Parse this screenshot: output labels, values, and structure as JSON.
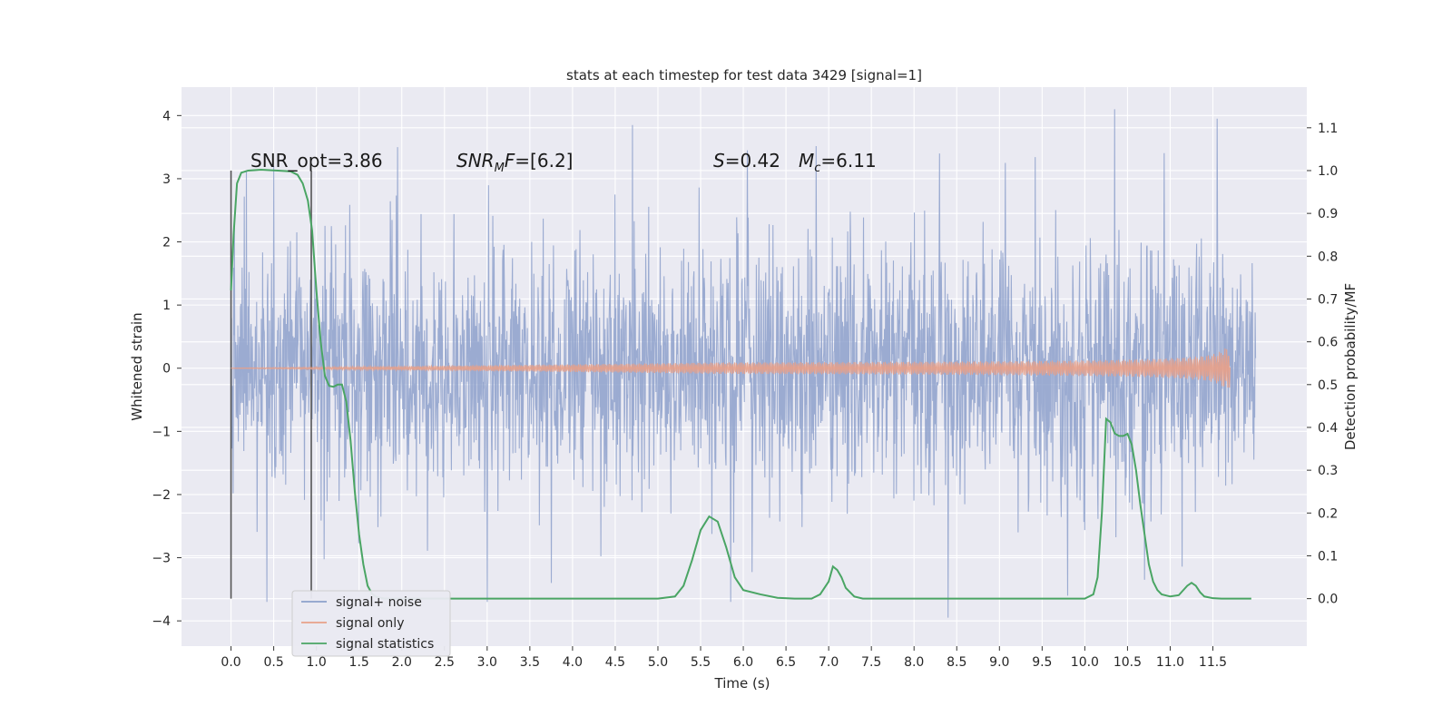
{
  "chart_data": {
    "type": "line",
    "title": "stats at each timestep for test data 3429 [signal=1]",
    "xlabel": "Time (s)",
    "ylabel": "Whitened strain",
    "y2label": "Detection probability/MF",
    "xlim": [
      -0.58,
      12.6
    ],
    "ylim": [
      -4.4,
      4.45
    ],
    "y2lim": [
      -0.111,
      1.195
    ],
    "x_ticks": [
      0.0,
      0.5,
      1.0,
      1.5,
      2.0,
      2.5,
      3.0,
      3.5,
      4.0,
      4.5,
      5.0,
      5.5,
      6.0,
      6.5,
      7.0,
      7.5,
      8.0,
      8.5,
      9.0,
      9.5,
      10.0,
      10.5,
      11.0,
      11.5
    ],
    "x_tick_labels": [
      "0.0",
      "0.5",
      "1.0",
      "1.5",
      "2.0",
      "2.5",
      "3.0",
      "3.5",
      "4.0",
      "4.5",
      "5.0",
      "5.5",
      "6.0",
      "6.5",
      "7.0",
      "7.5",
      "8.0",
      "8.5",
      "9.0",
      "9.5",
      "10.0",
      "10.5",
      "11.0",
      "11.5"
    ],
    "y_ticks": [
      -4,
      -3,
      -2,
      -1,
      0,
      1,
      2,
      3,
      4
    ],
    "y_tick_labels": [
      "−4",
      "−3",
      "−2",
      "−1",
      "0",
      "1",
      "2",
      "3",
      "4"
    ],
    "y2_ticks": [
      0.0,
      0.1,
      0.2,
      0.3,
      0.4,
      0.5,
      0.6,
      0.7,
      0.8,
      0.9,
      1.0,
      1.1
    ],
    "y2_tick_labels": [
      "0.0",
      "0.1",
      "0.2",
      "0.3",
      "0.4",
      "0.5",
      "0.6",
      "0.7",
      "0.8",
      "0.9",
      "1.0",
      "1.1"
    ],
    "grid": true,
    "legend_position": "bottom-left",
    "annotations": {
      "snr_opt": "SNR_opt=3.86",
      "snr_mf_main": "SNR",
      "snr_mf_sub": "M",
      "snr_mf_rest": "F=[6.2]",
      "s_main": "S",
      "s_rest": "=0.42",
      "mc_main": "M",
      "mc_sub": "c",
      "mc_rest": "=6.11"
    },
    "vertical_lines": [
      0.0,
      0.94
    ],
    "series": [
      {
        "name": "signal+ noise",
        "kind": "noise",
        "axis": "left",
        "color": "#8da0cb",
        "x_range": [
          0.0,
          12.0
        ],
        "sigma": 1.0,
        "upper_peaks": [
          [
            0.5,
            3.2
          ],
          [
            1.95,
            3.5
          ],
          [
            4.7,
            3.85
          ],
          [
            6.05,
            3.45
          ],
          [
            8.3,
            3.4
          ],
          [
            10.35,
            4.1
          ],
          [
            11.55,
            3.95
          ]
        ],
        "lower_peaks": [
          [
            0.42,
            -3.7
          ],
          [
            3.0,
            -3.7
          ],
          [
            3.75,
            -3.4
          ],
          [
            5.85,
            -3.7
          ],
          [
            8.4,
            -3.95
          ],
          [
            9.8,
            -3.6
          ],
          [
            10.7,
            -3.35
          ]
        ]
      },
      {
        "name": "signal only",
        "kind": "chirp",
        "axis": "left",
        "color": "#e8a088",
        "x_range": [
          0.0,
          11.7
        ],
        "peak_time": 11.65,
        "peak_amplitude": 0.38
      },
      {
        "name": "signal statistics",
        "kind": "line",
        "axis": "right",
        "color": "#4aa564",
        "x": [
          0.0,
          0.03,
          0.07,
          0.12,
          0.2,
          0.35,
          0.55,
          0.7,
          0.78,
          0.84,
          0.9,
          0.95,
          1.0,
          1.05,
          1.1,
          1.15,
          1.2,
          1.25,
          1.3,
          1.35,
          1.4,
          1.45,
          1.5,
          1.55,
          1.6,
          1.65,
          1.7,
          1.8,
          2.0,
          3.0,
          4.0,
          5.0,
          5.2,
          5.3,
          5.4,
          5.5,
          5.6,
          5.7,
          5.8,
          5.9,
          6.0,
          6.2,
          6.4,
          6.6,
          6.8,
          6.9,
          7.0,
          7.05,
          7.1,
          7.15,
          7.2,
          7.3,
          7.4,
          7.6,
          8.0,
          9.0,
          9.5,
          9.8,
          10.0,
          10.1,
          10.15,
          10.2,
          10.25,
          10.3,
          10.35,
          10.4,
          10.45,
          10.5,
          10.55,
          10.6,
          10.65,
          10.7,
          10.75,
          10.8,
          10.85,
          10.9,
          11.0,
          11.1,
          11.2,
          11.25,
          11.3,
          11.35,
          11.4,
          11.5,
          11.6,
          11.7,
          11.8,
          11.95
        ],
        "y": [
          0.72,
          0.85,
          0.97,
          0.995,
          1.0,
          1.002,
          1.0,
          0.998,
          0.99,
          0.97,
          0.93,
          0.86,
          0.72,
          0.6,
          0.52,
          0.497,
          0.495,
          0.5,
          0.5,
          0.46,
          0.37,
          0.25,
          0.15,
          0.08,
          0.03,
          0.012,
          0.004,
          0.0,
          0.0,
          0.0,
          0.0,
          0.0,
          0.005,
          0.03,
          0.09,
          0.16,
          0.192,
          0.18,
          0.12,
          0.05,
          0.02,
          0.01,
          0.002,
          0.0,
          0.0,
          0.01,
          0.04,
          0.075,
          0.067,
          0.05,
          0.025,
          0.005,
          0.0,
          0.0,
          0.0,
          0.0,
          0.0,
          0.0,
          0.0,
          0.01,
          0.05,
          0.2,
          0.42,
          0.412,
          0.386,
          0.38,
          0.38,
          0.385,
          0.36,
          0.3,
          0.22,
          0.15,
          0.08,
          0.04,
          0.02,
          0.01,
          0.005,
          0.008,
          0.03,
          0.037,
          0.03,
          0.015,
          0.005,
          0.001,
          0.0,
          0.0,
          0.0,
          0.0
        ]
      }
    ]
  }
}
